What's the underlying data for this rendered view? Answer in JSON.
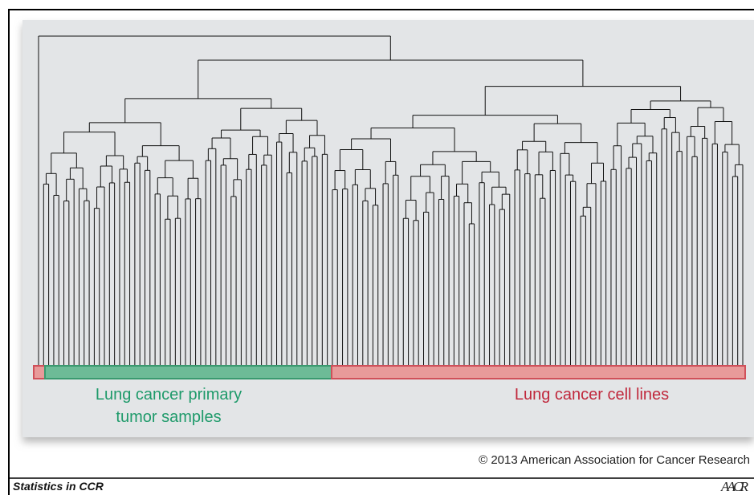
{
  "figure": {
    "labels": {
      "primary_tumor": [
        "Lung cancer primary",
        "tumor samples"
      ],
      "cell_lines": "Lung cancer cell lines"
    }
  },
  "footer": {
    "copyright": "© 2013 American Association for Cancer Research",
    "series": "Statistics in CCR",
    "logo": "AACR"
  }
}
